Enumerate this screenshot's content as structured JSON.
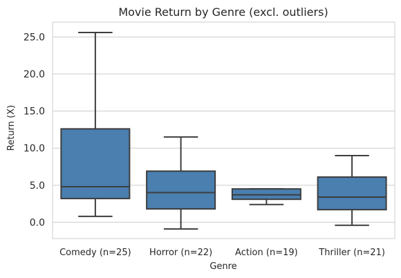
{
  "chart_data": {
    "type": "box",
    "title": "Movie Return by Genre (excl. outliers)",
    "xlabel": "Genre",
    "ylabel": "Return (X)",
    "ylim": [
      -2.2,
      27.0
    ],
    "yticks": [
      0.0,
      5.0,
      10.0,
      15.0,
      20.0,
      25.0
    ],
    "ytick_labels": [
      "0.0",
      "5.0",
      "10.0",
      "15.0",
      "20.0",
      "25.0"
    ],
    "grid": "horizontal",
    "categories": [
      "Comedy (n=25)",
      "Horror (n=22)",
      "Action (n=19)",
      "Thriller (n=21)"
    ],
    "boxes": [
      {
        "whisker_low": 0.8,
        "q1": 3.2,
        "median": 4.8,
        "q3": 12.6,
        "whisker_high": 25.6
      },
      {
        "whisker_low": -0.9,
        "q1": 1.8,
        "median": 4.0,
        "q3": 6.9,
        "whisker_high": 11.5
      },
      {
        "whisker_low": 2.4,
        "q1": 3.1,
        "median": 3.7,
        "q3": 4.5,
        "whisker_high": 4.5
      },
      {
        "whisker_low": -0.4,
        "q1": 1.7,
        "median": 3.4,
        "q3": 6.1,
        "whisker_high": 9.0
      }
    ],
    "box_color": "#4a7fb0",
    "line_color": "#3d3d3d",
    "grid_color": "#cccccc",
    "frame_color": "#cccccc"
  }
}
